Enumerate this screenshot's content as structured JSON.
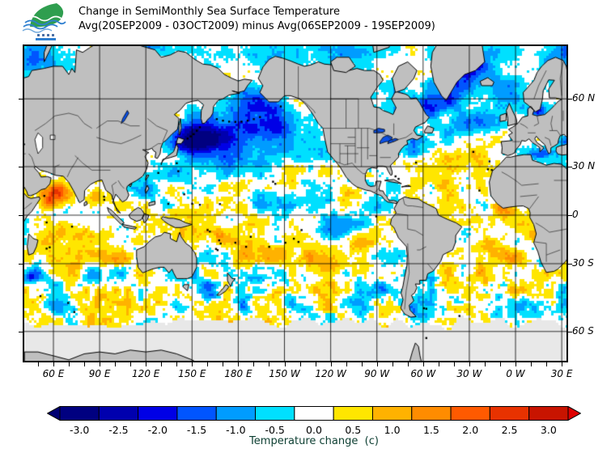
{
  "header": {
    "title_line1": "Change in SemiMonthly Sea Surface Temperature",
    "title_line2": "Avg(20SEP2009 - 03OCT2009) minus Avg(06SEP2009 - 19SEP2009)",
    "logo_name": "green-leaf-ocean-waves-logo"
  },
  "map": {
    "land_color": "#BFBFBF",
    "ice_color": "#E8E8E8",
    "ocean_neutral_color": "#FFFFFF",
    "coast_color": "#000000",
    "border_color": "#2b2b2b",
    "grid_color": "#000000",
    "lake_color": "#0A50E6",
    "inland_sea_color": "#FFFFFF",
    "lat_ticks": [
      {
        "label": "60 N",
        "lat": 60
      },
      {
        "label": "30 N",
        "lat": 30
      },
      {
        "label": "0",
        "lat": 0
      },
      {
        "label": "30 S",
        "lat": -30
      },
      {
        "label": "60 S",
        "lat": -60
      }
    ],
    "lon_ticks": [
      {
        "label": "60 E",
        "v": 60
      },
      {
        "label": "90 E",
        "v": 90
      },
      {
        "label": "120 E",
        "v": 120
      },
      {
        "label": "150 E",
        "v": 150
      },
      {
        "label": "180 E",
        "v": 180
      },
      {
        "label": "150 W",
        "v": 210
      },
      {
        "label": "120 W",
        "v": 240
      },
      {
        "label": "90 W",
        "v": 270
      },
      {
        "label": "60 W",
        "v": 300
      },
      {
        "label": "30 W",
        "v": 330
      },
      {
        "label": "0 W",
        "v": 360
      },
      {
        "label": "30 E",
        "v": 390
      }
    ],
    "minor_tick_step_deg": 10,
    "anomaly_regions": [
      [
        150,
        44,
        14,
        6,
        -2.4
      ],
      [
        163,
        42,
        20,
        8,
        -1.7
      ],
      [
        184,
        50,
        24,
        8,
        -1.5
      ],
      [
        204,
        47,
        16,
        7,
        -1.2
      ],
      [
        214,
        37,
        18,
        6,
        -0.7
      ],
      [
        172,
        33,
        22,
        6,
        -0.9
      ],
      [
        140,
        26,
        10,
        5,
        -0.8
      ],
      [
        122,
        15,
        7,
        5,
        -0.9
      ],
      [
        134,
        8,
        8,
        5,
        -0.6
      ],
      [
        186,
        59,
        12,
        4,
        -1.4
      ],
      [
        205,
        57,
        10,
        4,
        -1.0
      ],
      [
        40,
        71,
        22,
        4,
        -1.3
      ],
      [
        120,
        73,
        30,
        3,
        -1.0
      ],
      [
        190,
        71,
        25,
        3,
        -0.7
      ],
      [
        250,
        72,
        25,
        3,
        -0.8
      ],
      [
        330,
        69,
        16,
        5,
        -2.3
      ],
      [
        318,
        61,
        12,
        5,
        -1.7
      ],
      [
        303,
        57,
        7,
        4,
        -1.9
      ],
      [
        285,
        58,
        8,
        5,
        -1.2
      ],
      [
        355,
        61,
        10,
        5,
        -1.1
      ],
      [
        320,
        48,
        16,
        6,
        -0.8
      ],
      [
        340,
        52,
        12,
        5,
        -0.9
      ],
      [
        15,
        56,
        7,
        3,
        -1.7
      ],
      [
        17,
        37,
        11,
        3,
        -1.4
      ],
      [
        33,
        43,
        6,
        3,
        -1.6
      ],
      [
        62,
        14,
        9,
        6,
        2.4
      ],
      [
        56,
        7,
        6,
        4,
        1.6
      ],
      [
        88,
        13,
        7,
        5,
        1.2
      ],
      [
        38,
        20,
        4,
        6,
        0.8
      ],
      [
        72,
        -12,
        22,
        7,
        1.0
      ],
      [
        95,
        -25,
        18,
        6,
        0.85
      ],
      [
        52,
        -22,
        10,
        6,
        0.7
      ],
      [
        45,
        -36,
        7,
        4,
        -2.0
      ],
      [
        105,
        -28,
        7,
        4,
        0.9
      ],
      [
        150,
        4,
        18,
        7,
        0.45
      ],
      [
        165,
        -13,
        13,
        5,
        0.9
      ],
      [
        143,
        -12,
        8,
        4,
        0.6
      ],
      [
        200,
        -25,
        28,
        7,
        0.9
      ],
      [
        232,
        -30,
        18,
        6,
        0.65
      ],
      [
        255,
        -18,
        15,
        6,
        0.5
      ],
      [
        255,
        -5,
        18,
        5,
        -1.0
      ],
      [
        242,
        -11,
        13,
        4,
        -0.6
      ],
      [
        270,
        5,
        10,
        4,
        -0.5
      ],
      [
        205,
        10,
        22,
        6,
        -0.55
      ],
      [
        190,
        -5,
        15,
        5,
        0.4
      ],
      [
        285,
        -45,
        14,
        5,
        -0.8
      ],
      [
        160,
        -42,
        12,
        5,
        -0.9
      ],
      [
        178,
        -47,
        8,
        4,
        -0.8
      ],
      [
        310,
        -50,
        15,
        4,
        -0.5
      ],
      [
        320,
        30,
        14,
        6,
        0.95
      ],
      [
        336,
        36,
        10,
        5,
        0.7
      ],
      [
        293,
        37,
        5,
        3,
        -1.4
      ],
      [
        297,
        42,
        8,
        4,
        -1.0
      ],
      [
        310,
        20,
        12,
        5,
        0.55
      ],
      [
        265,
        25,
        6,
        3,
        0.8
      ],
      [
        252,
        15,
        10,
        5,
        0.7
      ],
      [
        352,
        4,
        8,
        5,
        1.5
      ],
      [
        345,
        -18,
        10,
        6,
        0.8
      ],
      [
        357,
        -26,
        10,
        6,
        0.9
      ],
      [
        12,
        -12,
        6,
        5,
        1.4
      ],
      [
        330,
        -4,
        10,
        4,
        0.6
      ],
      [
        335,
        -35,
        12,
        5,
        0.4
      ]
    ]
  },
  "colorbar": {
    "caption": "Temperature change  (c)",
    "caption_color": "#0c3e31",
    "labels": [
      "-3.0",
      "-2.5",
      "-2.0",
      "-1.5",
      "-1.0",
      "-0.5",
      "0.0",
      "0.5",
      "1.0",
      "1.5",
      "2.0",
      "2.5",
      "3.0"
    ],
    "values": [
      -3.0,
      -2.5,
      -2.0,
      -1.5,
      -1.0,
      -0.5,
      0.0,
      0.5,
      1.0,
      1.5,
      2.0,
      2.5,
      3.0
    ],
    "colors": [
      "#000080",
      "#0000AE",
      "#0000E6",
      "#0055FF",
      "#009CFF",
      "#00E0FF",
      "#FFFFFF",
      "#FFE600",
      "#FFB200",
      "#FF8C00",
      "#FF5A00",
      "#E83200",
      "#C81400"
    ],
    "left_arrow_color": "#000073",
    "right_arrow_color": "#DE0000",
    "segment_outline_color": "#000000"
  }
}
